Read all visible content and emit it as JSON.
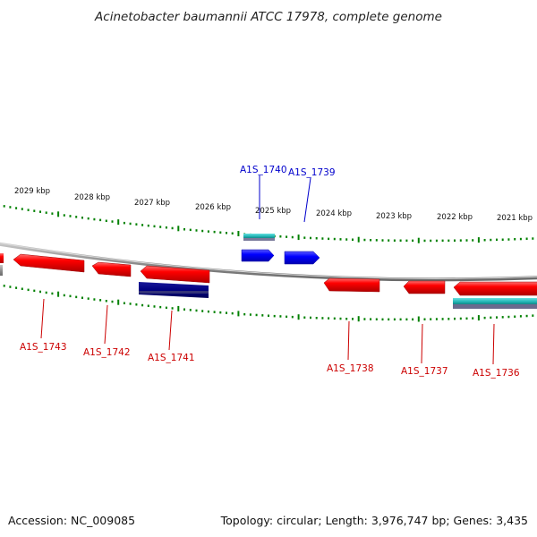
{
  "title": "Acinetobacter baumannii ATCC 17978, complete genome",
  "footer": {
    "accession": "Accession: NC_009085",
    "summary": "Topology: circular; Length: 3,976,747 bp; Genes: 3,435"
  },
  "scale_labels": [
    "2029 kbp",
    "2028 kbp",
    "2027 kbp",
    "2026 kbp",
    "2025 kbp",
    "2024 kbp",
    "2023 kbp",
    "2022 kbp",
    "2021 kbp"
  ],
  "gene_labels": {
    "a1s_1743": "A1S_1743",
    "a1s_1742": "A1S_1742",
    "a1s_1741": "A1S_1741",
    "a1s_1740": "A1S_1740",
    "a1s_1739": "A1S_1739",
    "a1s_1738": "A1S_1738",
    "a1s_1737": "A1S_1737",
    "a1s_1736": "A1S_1736"
  },
  "colors": {
    "forward_gene": "#ff0000",
    "reverse_gene": "#ff0000",
    "blue_gene": "#0000ff",
    "navy_gene": "#000080",
    "cyan_gene": "#33cccc",
    "backbone": "#808080",
    "tick": "#008000",
    "label_red": "#cc0000",
    "label_blue": "#0000cc"
  }
}
